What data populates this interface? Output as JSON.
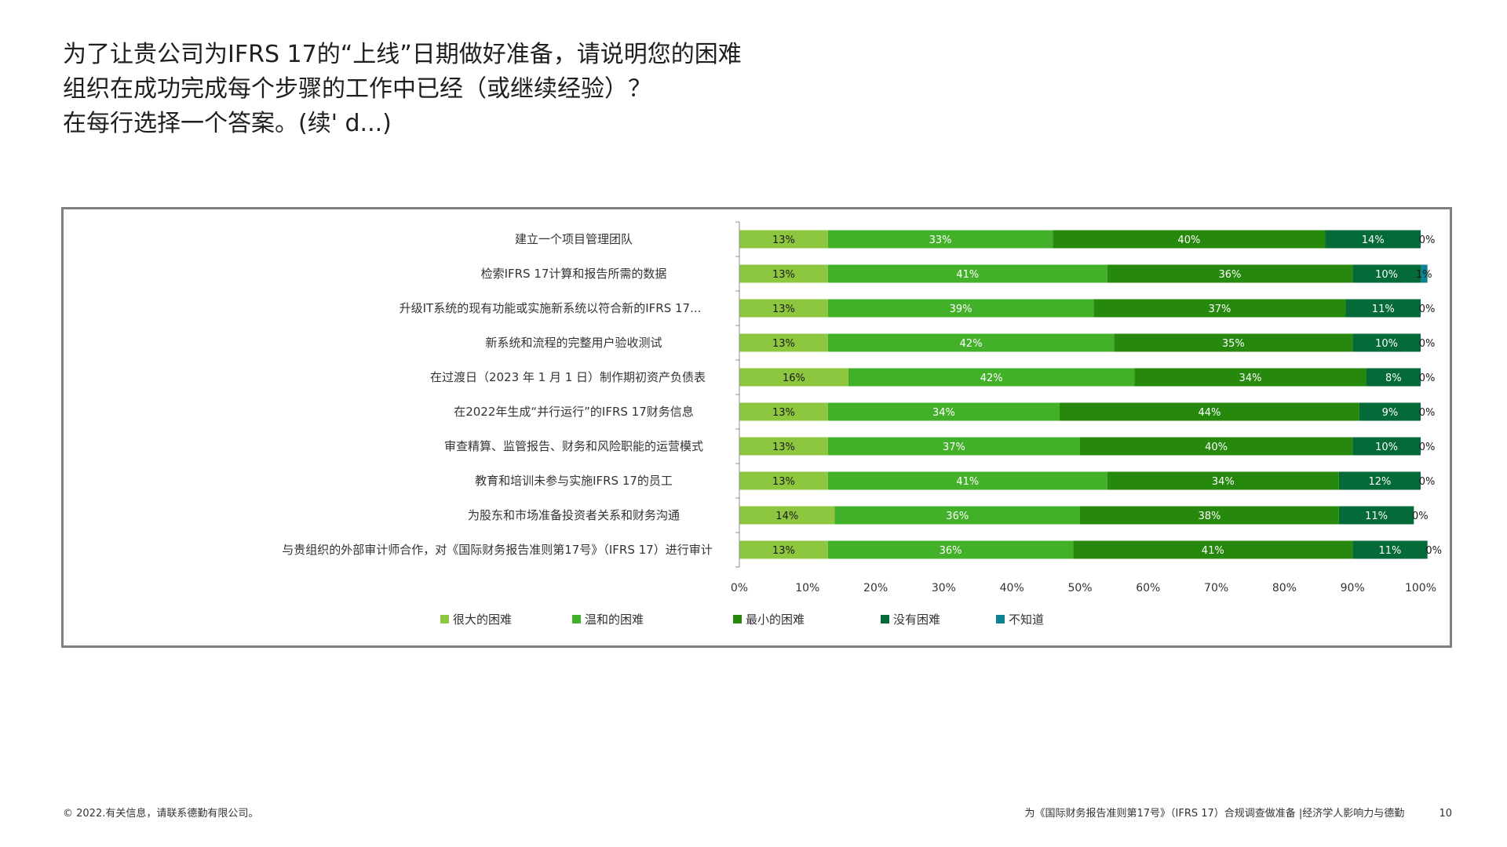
{
  "title": {
    "lines": [
      "为了让贵公司为IFRS 17的“上线”日期做好准备，请说明您的困难",
      "组织在成功完成每个步骤的工作中已经（或继续经验）？",
      "在每行选择一个答案。(续' d...)"
    ]
  },
  "footer": {
    "copyright": "© 2022.有关信息，请联系德勤有限公司。",
    "source": "为《国际财务报告准则第17号》（IFRS 17）合规调查做准备 |经济学人影响力与德勤",
    "page_number": "10"
  },
  "chart_data": {
    "type": "bar",
    "orientation": "horizontal",
    "stacked": true,
    "categories": [
      "建立一个项目管理团队",
      "检索IFRS 17计算和报告所需的数据",
      "升级IT系统的现有功能或实施新系统以符合新的IFRS 17...",
      "新系统和流程的完整用户验收测试",
      "在过渡日（2023 年 1 月 1 日）制作期初资产负债表",
      "在2022年生成“并行运行”的IFRS 17财务信息",
      "审查精算、监管报告、财务和风险职能的运营模式",
      "教育和培训未参与实施IFRS 17的员工",
      "为股东和市场准备投资者关系和财务沟通",
      "与贵组织的外部审计师合作，对《国际财务报告准则第17号》（IFRS 17）进行审计"
    ],
    "series": [
      {
        "name": "很大的困难",
        "color": "#8dc63f",
        "values": [
          13,
          13,
          13,
          13,
          16,
          13,
          13,
          13,
          14,
          13
        ]
      },
      {
        "name": "温和的困难",
        "color": "#43b02a",
        "values": [
          33,
          41,
          39,
          42,
          42,
          34,
          37,
          41,
          36,
          36
        ]
      },
      {
        "name": "最小的困难",
        "color": "#26890d",
        "values": [
          40,
          36,
          37,
          35,
          34,
          44,
          40,
          34,
          38,
          41
        ]
      },
      {
        "name": "没有困难",
        "color": "#046a38",
        "values": [
          14,
          10,
          11,
          10,
          8,
          9,
          10,
          12,
          11,
          11
        ]
      },
      {
        "name": "不知道",
        "color": "#0d8390",
        "values": [
          0,
          1,
          0,
          0,
          0,
          0,
          0,
          0,
          0,
          0
        ]
      }
    ],
    "data_labels": [
      [
        "13%",
        "33%",
        "40%",
        "14%",
        "0%"
      ],
      [
        "13%",
        "41%",
        "36%",
        "10%",
        "1%"
      ],
      [
        "13%",
        "39%",
        "37%",
        "11%",
        "0%"
      ],
      [
        "13%",
        "42%",
        "35%",
        "10%",
        "0%"
      ],
      [
        "16%",
        "42%",
        "34%",
        "8%",
        "0%"
      ],
      [
        "13%",
        "34%",
        "44%",
        "9%",
        "0%"
      ],
      [
        "13%",
        "37%",
        "40%",
        "10%",
        "0%"
      ],
      [
        "13%",
        "41%",
        "34%",
        "12%",
        "0%"
      ],
      [
        "14%",
        "36%",
        "38%",
        "11%",
        "0%"
      ],
      [
        "13%",
        "36%",
        "41%",
        "11%",
        "0%"
      ]
    ],
    "xlim": [
      0,
      100
    ],
    "xticks": [
      "0%",
      "10%",
      "20%",
      "30%",
      "40%",
      "50%",
      "60%",
      "70%",
      "80%",
      "90%",
      "100%"
    ],
    "legend_position": "bottom",
    "grid": false
  }
}
